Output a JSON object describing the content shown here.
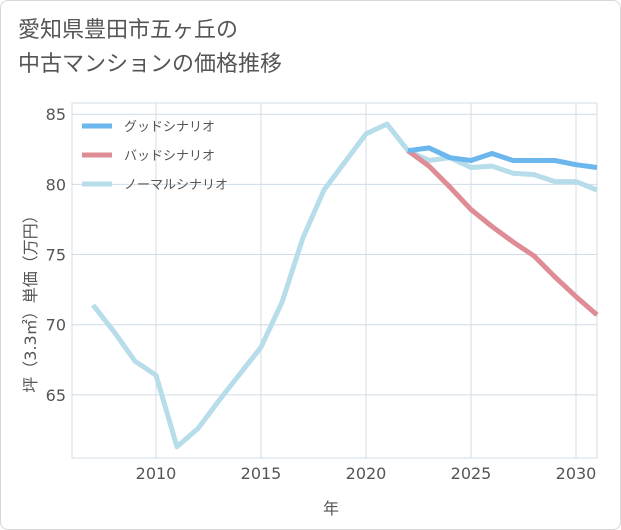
{
  "title_lines": [
    "愛知県豊田市五ヶ丘の",
    "中古マンションの価格推移"
  ],
  "chart_data": {
    "type": "line",
    "title": "愛知県豊田市五ヶ丘の中古マンションの価格推移",
    "xlabel": "年",
    "ylabel": "坪（3.3㎡）単価（万円）",
    "xlim": [
      2006,
      2031
    ],
    "ylim": [
      60.5,
      85.8
    ],
    "xticks": [
      2010,
      2015,
      2020,
      2025,
      2030
    ],
    "yticks": [
      65,
      70,
      75,
      80,
      85
    ],
    "grid": true,
    "legend_position": "top-left",
    "series": [
      {
        "name": "グッドシナリオ",
        "color": "#6cb6ee",
        "x": [
          2022,
          2023,
          2024,
          2025,
          2026,
          2027,
          2028,
          2029,
          2030,
          2031
        ],
        "y": [
          82.4,
          82.6,
          81.9,
          81.7,
          82.2,
          81.7,
          81.7,
          81.7,
          81.4,
          81.2
        ]
      },
      {
        "name": "バッドシナリオ",
        "color": "#de8c96",
        "x": [
          2022,
          2023,
          2024,
          2025,
          2026,
          2027,
          2028,
          2029,
          2030,
          2031
        ],
        "y": [
          82.4,
          81.3,
          79.8,
          78.2,
          77.0,
          75.9,
          74.9,
          73.4,
          72.0,
          70.7
        ]
      },
      {
        "name": "ノーマルシナリオ",
        "color": "#b7dcea",
        "x": [
          2007,
          2008,
          2009,
          2010,
          2011,
          2012,
          2013,
          2014,
          2015,
          2016,
          2017,
          2018,
          2019,
          2020,
          2021,
          2022,
          2023,
          2024,
          2025,
          2026,
          2027,
          2028,
          2029,
          2030,
          2031
        ],
        "y": [
          71.4,
          69.5,
          67.4,
          66.4,
          61.3,
          62.6,
          64.6,
          66.5,
          68.4,
          71.6,
          76.2,
          79.6,
          81.6,
          83.6,
          84.3,
          82.4,
          81.7,
          81.9,
          81.2,
          81.3,
          80.8,
          80.7,
          80.2,
          80.2,
          79.6
        ]
      }
    ]
  }
}
